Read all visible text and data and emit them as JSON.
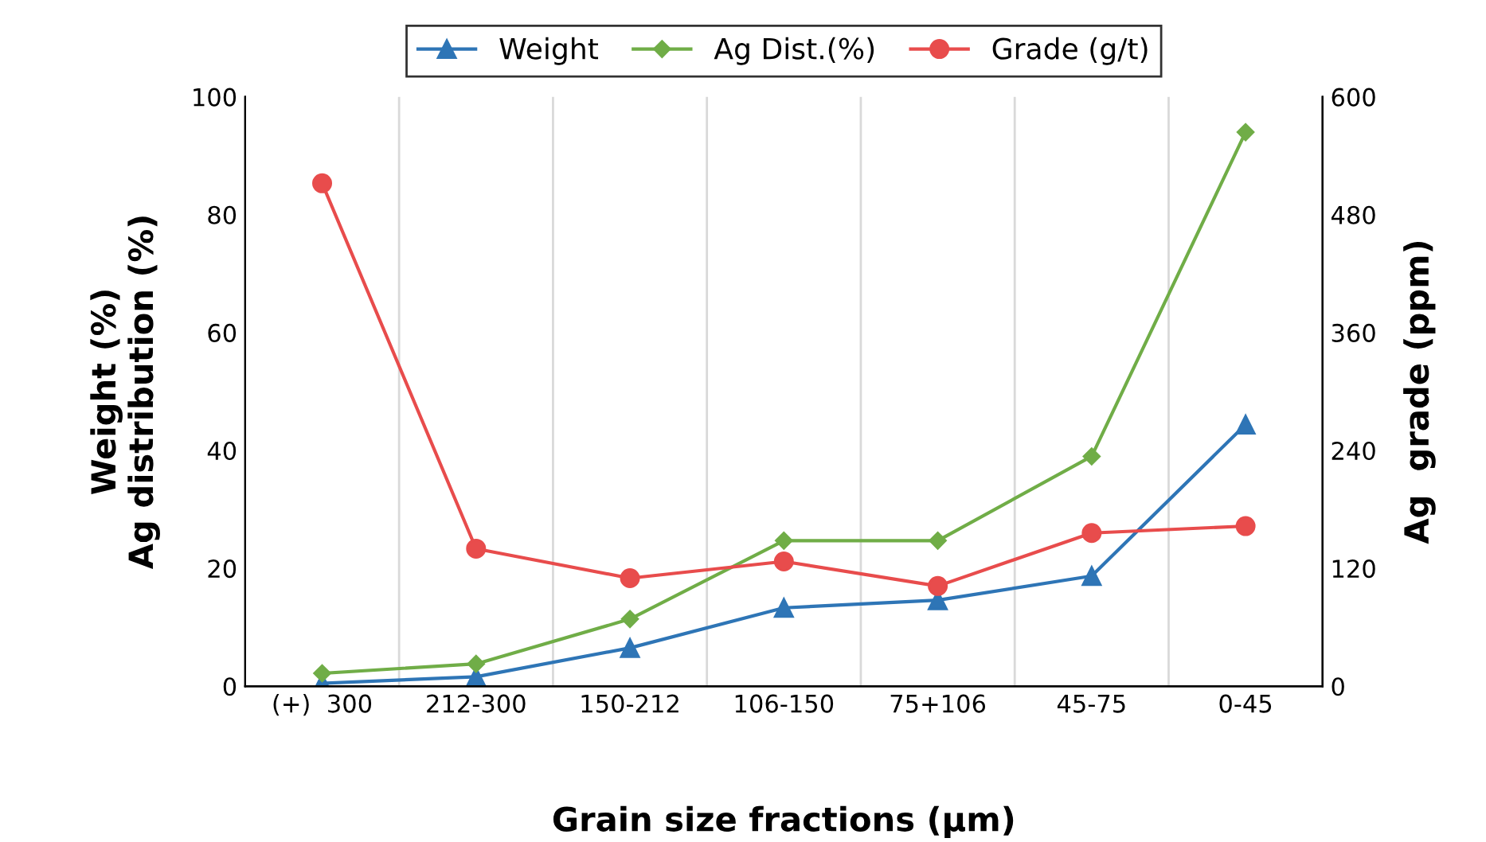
{
  "chart_data": {
    "type": "line",
    "xlabel": "Grain size fractions (µm)",
    "ylabel": "Weight (%)\nAg distribution (%)",
    "y2label": "Ag  grade (ppm)",
    "categories": [
      "(+)  300",
      "212-300",
      "150-212",
      "106-150",
      "75+106",
      "45-75",
      "0-45"
    ],
    "series": [
      {
        "name": "Weight",
        "color": "#2e75b6",
        "marker": "triangle",
        "values": [
          0.5,
          1.6,
          6.5,
          13.3,
          14.6,
          18.7,
          44.4
        ]
      },
      {
        "name": "Ag Dist.(%)",
        "color": "#70ad47",
        "marker": "diamond",
        "values": [
          2.2,
          3.8,
          11.4,
          24.7,
          24.7,
          39.0,
          94.0
        ]
      },
      {
        "name": "Grade (g/t)",
        "color": "#e84c4c",
        "marker": "circle",
        "axis": "y2",
        "values": [
          512,
          140,
          110,
          127,
          102,
          156,
          163
        ]
      }
    ],
    "ylim": [
      0,
      100
    ],
    "yticks": [
      0,
      20,
      40,
      60,
      80,
      100
    ],
    "y2lim": [
      0,
      600
    ],
    "y2ticks": [
      0,
      120,
      240,
      360,
      480,
      600
    ],
    "grid": "x",
    "legend": "top",
    "line_style": "solid"
  }
}
